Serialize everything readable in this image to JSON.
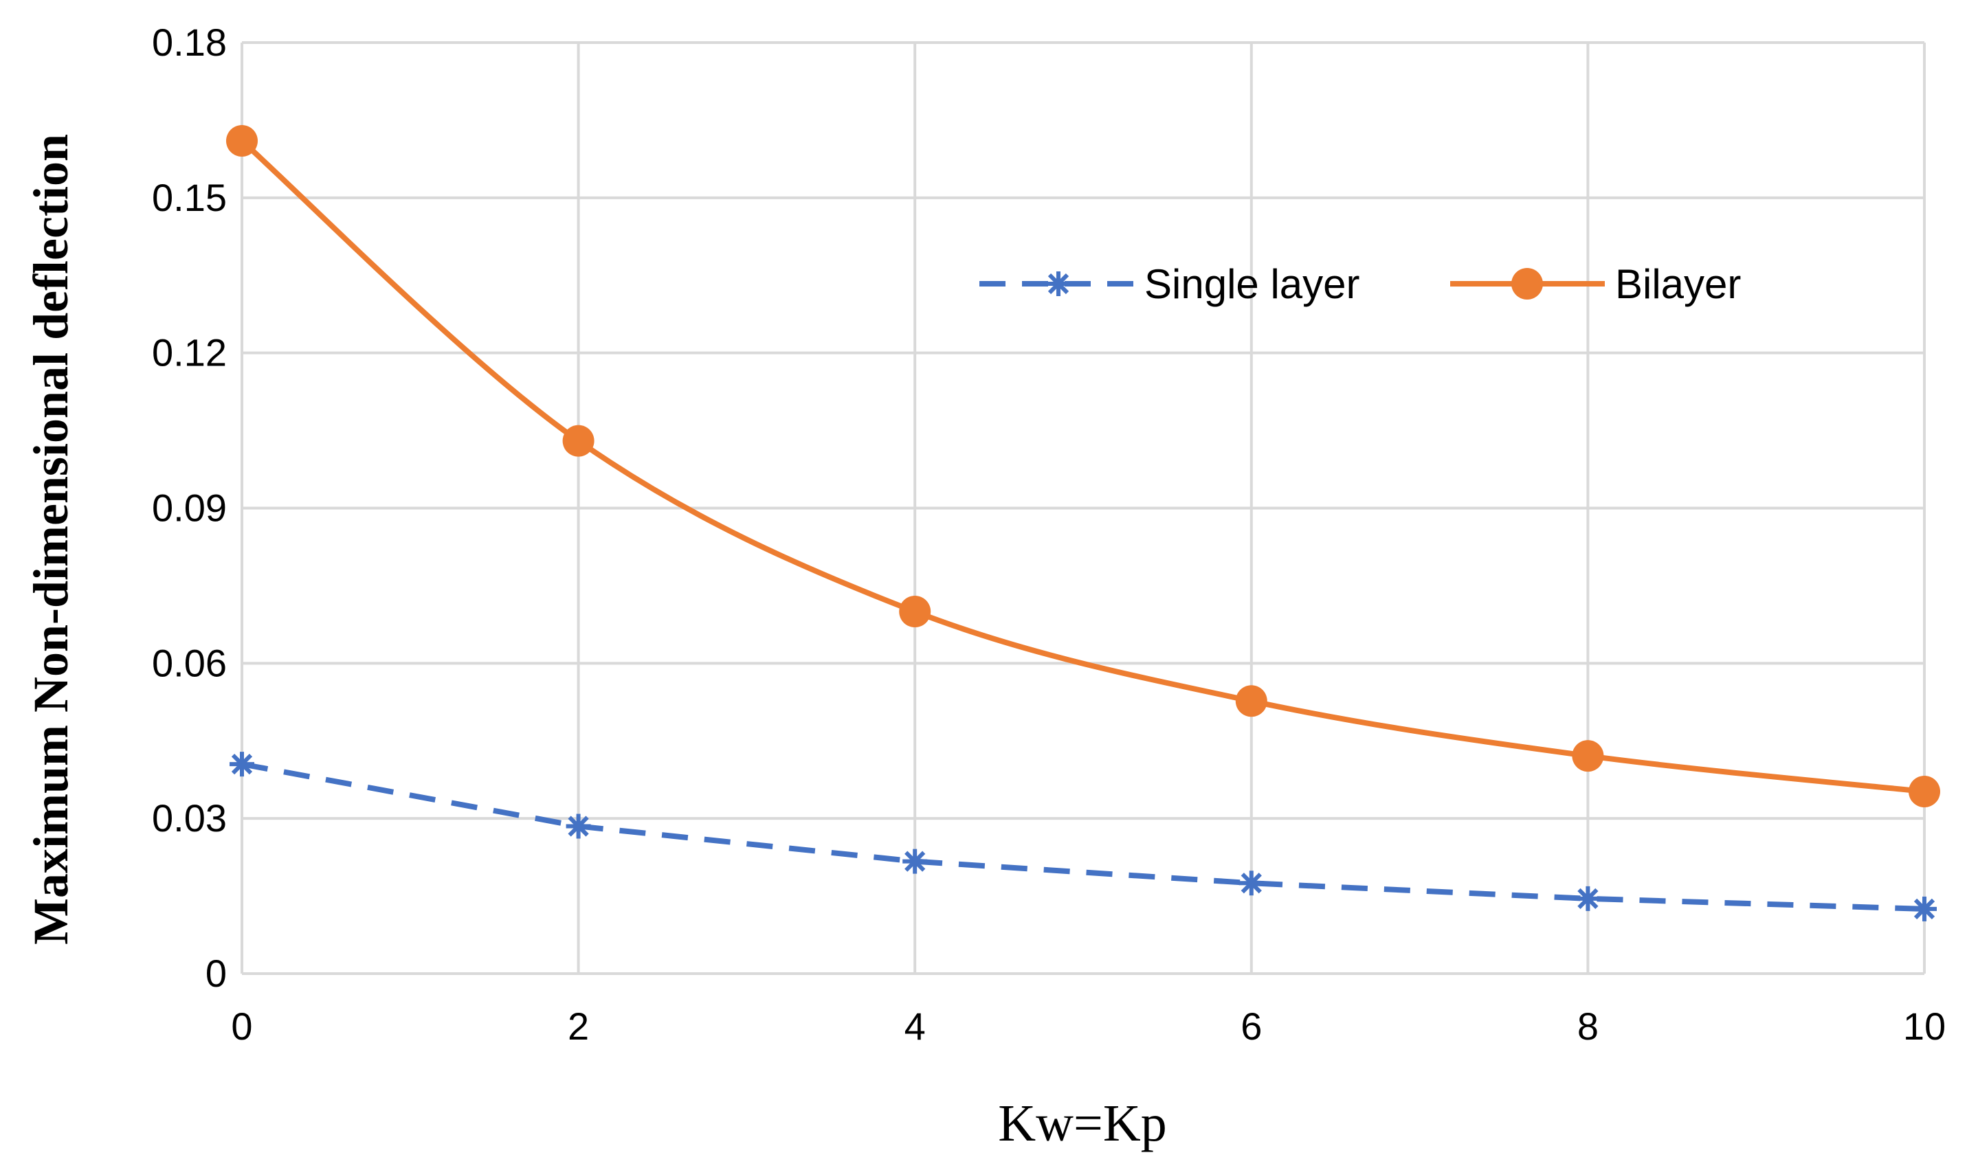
{
  "chart_data": {
    "type": "line",
    "title": "",
    "xlabel": "Kw=Kp",
    "ylabel": "Maximum Non-dimensional deflection",
    "x": [
      0,
      2,
      4,
      6,
      8,
      10
    ],
    "xticks": [
      "0",
      "2",
      "4",
      "6",
      "8",
      "10"
    ],
    "yticks": [
      "0",
      "0.03",
      "0.06",
      "0.09",
      "0.12",
      "0.15",
      "0.18"
    ],
    "xlim": [
      0,
      10
    ],
    "ylim": [
      0,
      0.18
    ],
    "grid": true,
    "legend_position": "top-right",
    "series": [
      {
        "name": "Single layer",
        "values": [
          0.0405,
          0.0285,
          0.0217,
          0.0175,
          0.0145,
          0.0125
        ],
        "color": "#4472C4",
        "line_style": "dashed",
        "marker": "asterisk",
        "smooth": false
      },
      {
        "name": "Bilayer",
        "values": [
          0.161,
          0.103,
          0.07,
          0.0527,
          0.0421,
          0.0352
        ],
        "color": "#ED7D31",
        "line_style": "solid",
        "marker": "circle",
        "smooth": true
      }
    ]
  }
}
